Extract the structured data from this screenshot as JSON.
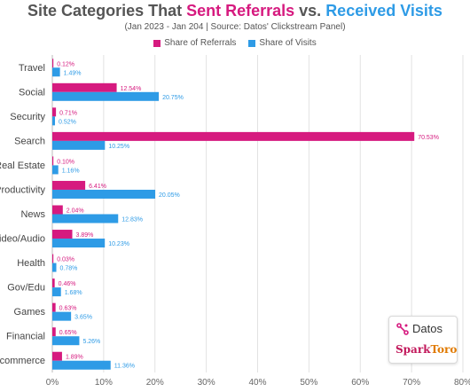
{
  "title": {
    "part1": "Site Categories That ",
    "part2": "Sent Referrals",
    "part3": " vs. ",
    "part4": "Received Visits"
  },
  "subtitle": "(Jan 2023 - Jan 204 | Source: Datos' Clickstream Panel)",
  "colors": {
    "referrals": "#d61a7f",
    "visits": "#2e9be6",
    "title_referrals": "#d61a7f",
    "title_visits": "#2e9be6"
  },
  "logos": {
    "datos": "Datos",
    "spark": "Spark",
    "toro": "Toro"
  },
  "chart_data": {
    "type": "bar",
    "orientation": "horizontal",
    "categories": [
      "Travel",
      "Social",
      "Security",
      "Search",
      "Real Estate",
      "Productivity",
      "News",
      "Video/Audio",
      "Health",
      "Gov/Edu",
      "Games",
      "Financial",
      "Ecommerce"
    ],
    "series": [
      {
        "name": "Share of Referrals",
        "values": [
          0.12,
          12.54,
          0.71,
          70.53,
          0.1,
          6.41,
          2.04,
          3.89,
          0.03,
          0.46,
          0.63,
          0.65,
          1.89
        ],
        "labels": [
          "0.12%",
          "12.54%",
          "0.71%",
          "70.53%",
          "0.10%",
          "6.41%",
          "2.04%",
          "3.89%",
          "0.03%",
          "0.46%",
          "0.63%",
          "0.65%",
          "1.89%"
        ]
      },
      {
        "name": "Share of Visits",
        "values": [
          1.49,
          20.75,
          0.52,
          10.25,
          1.16,
          20.05,
          12.83,
          10.23,
          0.78,
          1.68,
          3.65,
          5.26,
          11.36
        ],
        "labels": [
          "1.49%",
          "20.75%",
          "0.52%",
          "10.25%",
          "1.16%",
          "20.05%",
          "12.83%",
          "10.23%",
          "0.78%",
          "1.68%",
          "3.65%",
          "5.26%",
          "11.36%"
        ]
      }
    ],
    "xlim": [
      0,
      80
    ],
    "xticks": [
      "0%",
      "10%",
      "20%",
      "30%",
      "40%",
      "50%",
      "60%",
      "70%",
      "80%"
    ],
    "grid": true,
    "legend": "top-center"
  }
}
